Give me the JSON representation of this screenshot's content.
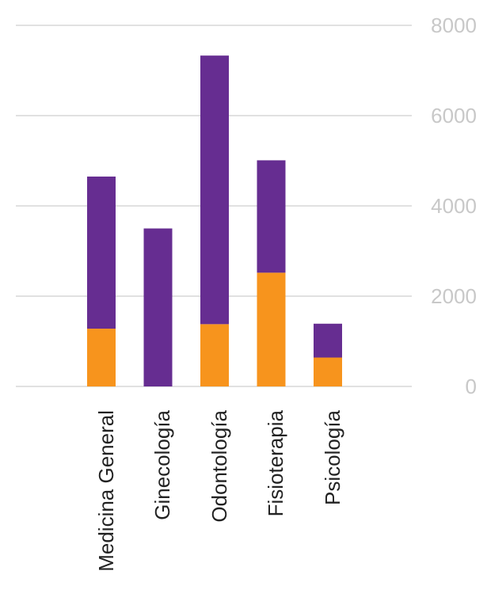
{
  "chart_data": {
    "type": "bar",
    "stacked": true,
    "categories": [
      "Medicina General",
      "Ginecología",
      "Odontología",
      "Fisioterapia",
      "Psicología"
    ],
    "series": [
      {
        "values": [
          1280,
          0,
          1380,
          2520,
          640
        ]
      },
      {
        "values": [
          3370,
          3500,
          5950,
          2490,
          750
        ]
      }
    ],
    "ylim": [
      0,
      8000
    ],
    "y_ticks": [
      "0",
      "2000",
      "4000",
      "6000",
      "8000"
    ],
    "y_tick_values": [
      0,
      2000,
      4000,
      6000,
      8000
    ],
    "y_axis_position": "right",
    "grid": true,
    "legend": "none"
  },
  "colors": {
    "series": [
      "#f7941d",
      "#662d91"
    ],
    "grid": "#cfcfcf",
    "tick_text": "#c8c8c8",
    "category_text": "#222222"
  }
}
